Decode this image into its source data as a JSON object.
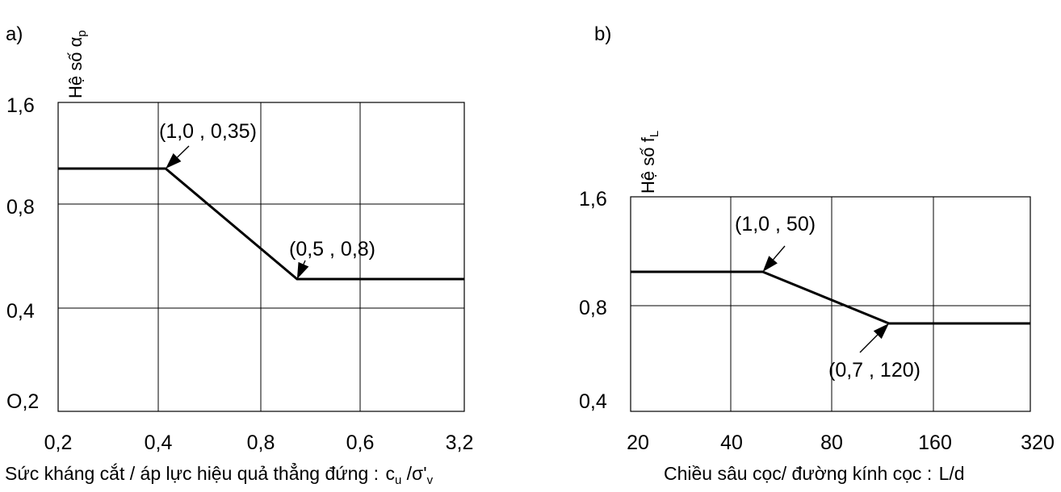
{
  "chart_data": [
    {
      "type": "line",
      "panel_label": "a)",
      "ylabel": "Hệ số α",
      "ylabel_sub": "p",
      "xlabel": "Sức kháng cắt / áp lực hiệu quả thẳng đứng : ",
      "xlabel_math": "c",
      "xlabel_math_sub": "u",
      "xlabel_math_rest": " /σ'",
      "xlabel_math_sub2": "v",
      "x_tick_labels": [
        "0,2",
        "0,4",
        "0,8",
        "0,6",
        "3,2"
      ],
      "y_tick_labels": [
        "0,2",
        "0,4",
        "0,8",
        "1,6"
      ],
      "y_bottom_label": "O,2",
      "grid": true,
      "series": [
        {
          "x": [
            0,
            0.9,
            2,
            3.4
          ],
          "y": [
            1.35,
            1.35,
            0.55,
            0.55
          ]
        }
      ],
      "annotations": [
        {
          "text": "(1,0 , 0,35)",
          "point": [
            0.9,
            1.35
          ]
        },
        {
          "text": "(0,5 , 0,8)",
          "point": [
            2,
            0.55
          ]
        }
      ]
    },
    {
      "type": "line",
      "panel_label": "b)",
      "ylabel": "Hệ số f",
      "ylabel_sub": "L",
      "xlabel": "Chiều sâu cọc/ đường kính cọc  : ",
      "xlabel_math": "L/d",
      "x_tick_labels": [
        "20",
        "40",
        "80",
        "160",
        "320"
      ],
      "y_tick_labels": [
        "0,4",
        "0,8",
        "1,6"
      ],
      "grid": true,
      "series": [
        {
          "x": [
            20,
            50,
            120,
            320
          ],
          "y": [
            1.05,
            1.05,
            0.72,
            0.72
          ]
        }
      ],
      "annotations": [
        {
          "text": "(1,0 , 50)",
          "point": [
            50,
            1.05
          ]
        },
        {
          "text": "(0,7 , 120)",
          "point": [
            120,
            0.72
          ]
        }
      ]
    }
  ]
}
